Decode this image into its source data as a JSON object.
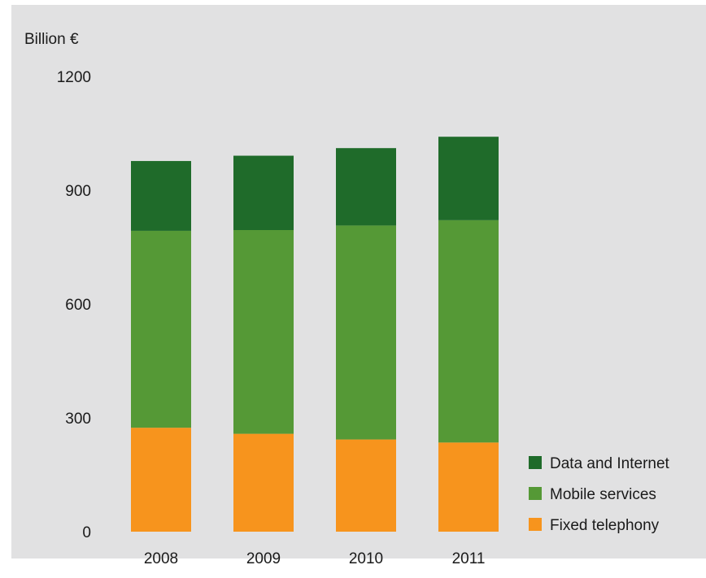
{
  "chart_data": {
    "type": "bar",
    "stacked": true,
    "ylabel": "Billion €",
    "ylim": [
      0,
      1200
    ],
    "yticks": [
      0,
      300,
      600,
      900,
      1200
    ],
    "categories": [
      "2008",
      "2009",
      "2010",
      "2011"
    ],
    "grid": false,
    "legend_position": "bottom-right",
    "series": [
      {
        "name": "Fixed telephony",
        "color": "#f7941d",
        "values": [
          274,
          258,
          243,
          235
        ]
      },
      {
        "name": "Mobile services",
        "color": "#559936",
        "values": [
          519,
          537,
          564,
          586
        ]
      },
      {
        "name": "Data and Internet",
        "color": "#1f6b2a",
        "values": [
          184,
          196,
          204,
          220
        ]
      }
    ]
  }
}
